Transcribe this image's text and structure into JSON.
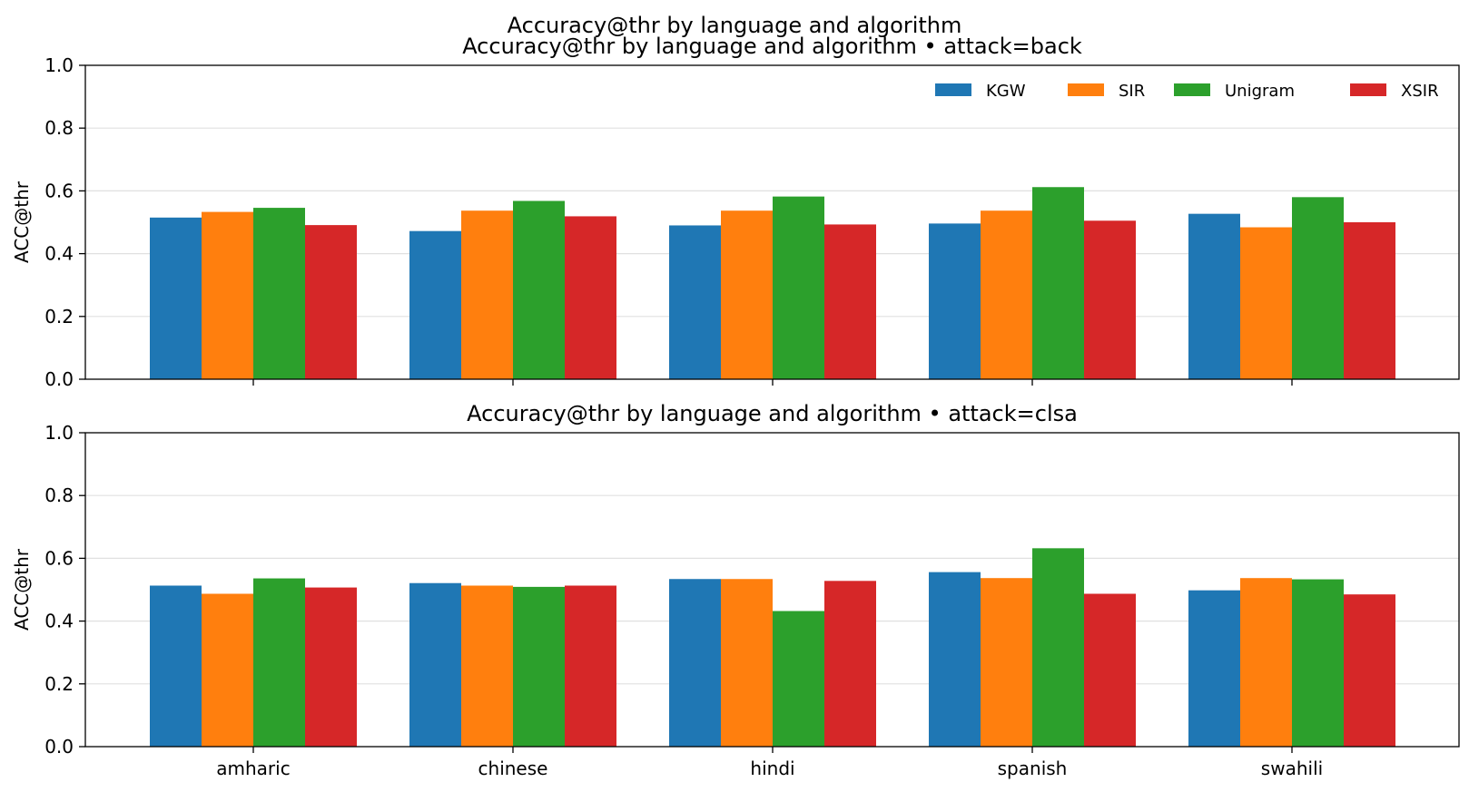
{
  "suptitle": "Accuracy@thr by language and algorithm",
  "colors": {
    "KGW": "#1f77b4",
    "SIR": "#ff7f0e",
    "Unigram": "#2ca02c",
    "XSIR": "#d62728"
  },
  "chart_data": [
    {
      "type": "bar",
      "title": "Accuracy@thr by language and algorithm • attack=back",
      "xlabel": "",
      "ylabel": "ACC@thr",
      "ylim": [
        0,
        1
      ],
      "yticks": [
        "0.0",
        "0.2",
        "0.4",
        "0.6",
        "0.8",
        "1.0"
      ],
      "grid": "y",
      "legend": "top-right",
      "categories": [
        "amharic",
        "chinese",
        "hindi",
        "spanish",
        "swahili"
      ],
      "series": [
        {
          "name": "KGW",
          "values": [
            0.515,
            0.472,
            0.49,
            0.496,
            0.527
          ]
        },
        {
          "name": "SIR",
          "values": [
            0.533,
            0.537,
            0.537,
            0.537,
            0.484
          ]
        },
        {
          "name": "Unigram",
          "values": [
            0.546,
            0.568,
            0.582,
            0.612,
            0.58
          ]
        },
        {
          "name": "XSIR",
          "values": [
            0.491,
            0.519,
            0.493,
            0.505,
            0.5
          ]
        }
      ]
    },
    {
      "type": "bar",
      "title": "Accuracy@thr by language and algorithm • attack=clsa",
      "xlabel": "",
      "ylabel": "ACC@thr",
      "ylim": [
        0,
        1
      ],
      "yticks": [
        "0.0",
        "0.2",
        "0.4",
        "0.6",
        "0.8",
        "1.0"
      ],
      "grid": "y",
      "categories": [
        "amharic",
        "chinese",
        "hindi",
        "spanish",
        "swahili"
      ],
      "series": [
        {
          "name": "KGW",
          "values": [
            0.513,
            0.521,
            0.534,
            0.556,
            0.498
          ]
        },
        {
          "name": "SIR",
          "values": [
            0.487,
            0.513,
            0.534,
            0.537,
            0.537
          ]
        },
        {
          "name": "Unigram",
          "values": [
            0.536,
            0.509,
            0.432,
            0.632,
            0.533
          ]
        },
        {
          "name": "XSIR",
          "values": [
            0.507,
            0.513,
            0.528,
            0.487,
            0.485
          ]
        }
      ]
    }
  ]
}
